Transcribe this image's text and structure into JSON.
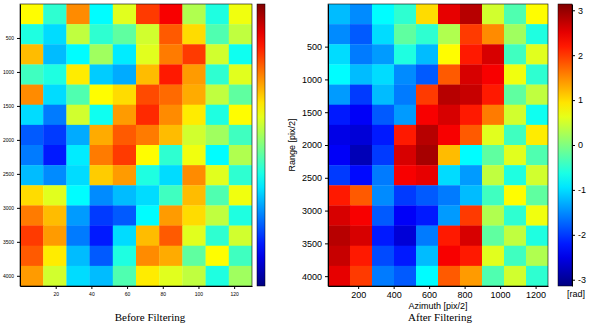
{
  "chart_data": [
    {
      "type": "heatmap",
      "title": "Before Filtering",
      "xlim": [
        0,
        130
      ],
      "ylim": [
        0,
        4150
      ],
      "xticks": [
        20,
        40,
        60,
        80,
        100,
        120
      ],
      "yticks": [
        500,
        1000,
        1500,
        2000,
        2500,
        3000,
        3500,
        4000
      ],
      "colorbar_lim": [
        -3.14,
        3.14
      ],
      "cells": [
        [
          0.8,
          -0.5,
          1.5,
          -0.8,
          0.6,
          2.0,
          2.4,
          0.3,
          -0.6,
          0.7
        ],
        [
          -0.6,
          -1.0,
          0.4,
          -0.5,
          -0.2,
          0.5,
          1.8,
          1.0,
          -0.3,
          0.4
        ],
        [
          1.2,
          -1.2,
          -0.8,
          0.2,
          -0.9,
          0.6,
          1.6,
          2.0,
          0.5,
          -0.7
        ],
        [
          -0.4,
          -0.6,
          0.9,
          -1.1,
          -1.3,
          1.2,
          2.2,
          1.4,
          -0.5,
          0.6
        ],
        [
          1.5,
          -1.0,
          -0.3,
          0.8,
          1.0,
          1.9,
          1.7,
          1.3,
          0.4,
          -0.2
        ],
        [
          -1.0,
          -1.6,
          0.5,
          -0.7,
          1.4,
          2.1,
          1.5,
          0.9,
          -0.6,
          0.8
        ],
        [
          -1.8,
          -2.0,
          -1.3,
          1.3,
          1.8,
          1.6,
          1.2,
          0.5,
          0.2,
          -0.4
        ],
        [
          -1.6,
          -2.2,
          -0.9,
          1.6,
          2.0,
          0.8,
          -0.5,
          0.7,
          -0.8,
          0.3
        ],
        [
          -1.2,
          -1.5,
          -1.0,
          1.1,
          1.4,
          -0.6,
          -1.0,
          1.5,
          0.6,
          -0.5
        ],
        [
          1.0,
          0.6,
          -0.8,
          -1.5,
          -1.2,
          -1.0,
          -0.4,
          1.2,
          -0.3,
          0.7
        ],
        [
          1.6,
          1.2,
          -1.4,
          -2.0,
          -1.8,
          -0.8,
          1.4,
          1.0,
          0.4,
          -0.6
        ],
        [
          2.0,
          1.4,
          -1.6,
          -2.2,
          -1.0,
          1.2,
          1.8,
          0.6,
          -0.5,
          0.5
        ],
        [
          1.8,
          0.9,
          -1.2,
          -1.8,
          -0.6,
          1.5,
          1.3,
          -0.2,
          0.8,
          -0.4
        ],
        [
          1.4,
          0.5,
          -1.0,
          -1.2,
          -0.3,
          0.9,
          0.6,
          0.4,
          -0.6,
          0.2
        ]
      ]
    },
    {
      "type": "heatmap",
      "title": "After Filtering",
      "xlabel": "Azimuth [pix/2]",
      "ylabel": "Range [pix/2]",
      "xlim": [
        30,
        1270
      ],
      "ylim": [
        -150,
        4150
      ],
      "xticks": [
        200,
        400,
        600,
        800,
        1000,
        1200
      ],
      "yticks": [
        500,
        1000,
        1500,
        2000,
        2500,
        3000,
        3500,
        4000
      ],
      "colorbar_lim": [
        -3.14,
        3.14
      ],
      "colorbar_ticks": [
        -3,
        -2,
        -1,
        0,
        1,
        2,
        3
      ],
      "colorbar_label": "[rad]",
      "cells": [
        [
          -1.2,
          -1.5,
          -0.8,
          -0.5,
          1.0,
          2.5,
          2.8,
          0.5,
          -0.3,
          0.8
        ],
        [
          -1.5,
          -1.8,
          -1.0,
          -0.2,
          -0.5,
          0.3,
          2.0,
          1.5,
          0.2,
          -0.6
        ],
        [
          -1.0,
          -1.6,
          -1.4,
          -0.6,
          -1.2,
          0.8,
          2.2,
          2.6,
          -0.4,
          0.6
        ],
        [
          -0.8,
          -1.2,
          -1.0,
          -1.5,
          -1.8,
          1.8,
          2.6,
          2.4,
          0.7,
          -0.5
        ],
        [
          -1.4,
          -2.0,
          -1.2,
          -1.6,
          2.0,
          2.8,
          2.7,
          2.2,
          -0.2,
          0.4
        ],
        [
          -2.2,
          -2.4,
          -1.8,
          -1.4,
          2.4,
          2.6,
          2.2,
          1.6,
          0.5,
          -0.7
        ],
        [
          -2.5,
          -2.6,
          -2.2,
          2.2,
          2.8,
          2.4,
          1.8,
          0.6,
          -0.4,
          0.9
        ],
        [
          -2.4,
          -2.8,
          -2.0,
          2.6,
          2.9,
          1.2,
          -0.8,
          -0.2,
          0.6,
          -0.3
        ],
        [
          -2.0,
          -2.3,
          -1.6,
          2.4,
          2.5,
          -1.0,
          -1.4,
          0.4,
          -0.6,
          0.5
        ],
        [
          2.2,
          1.8,
          -1.5,
          -2.0,
          -1.8,
          -1.6,
          -1.2,
          -0.4,
          0.8,
          -0.2
        ],
        [
          2.6,
          2.4,
          -1.8,
          -2.4,
          -2.2,
          -1.4,
          2.0,
          0.3,
          -0.5,
          0.7
        ],
        [
          2.8,
          2.6,
          -2.2,
          -2.6,
          -1.6,
          2.2,
          2.6,
          -0.2,
          0.4,
          -0.6
        ],
        [
          2.7,
          2.2,
          -1.9,
          -2.2,
          -1.2,
          2.4,
          2.2,
          0.6,
          -0.4,
          0.3
        ],
        [
          2.5,
          2.0,
          -1.6,
          -1.8,
          -0.8,
          1.8,
          1.4,
          -0.3,
          0.5,
          -0.5
        ]
      ]
    }
  ]
}
